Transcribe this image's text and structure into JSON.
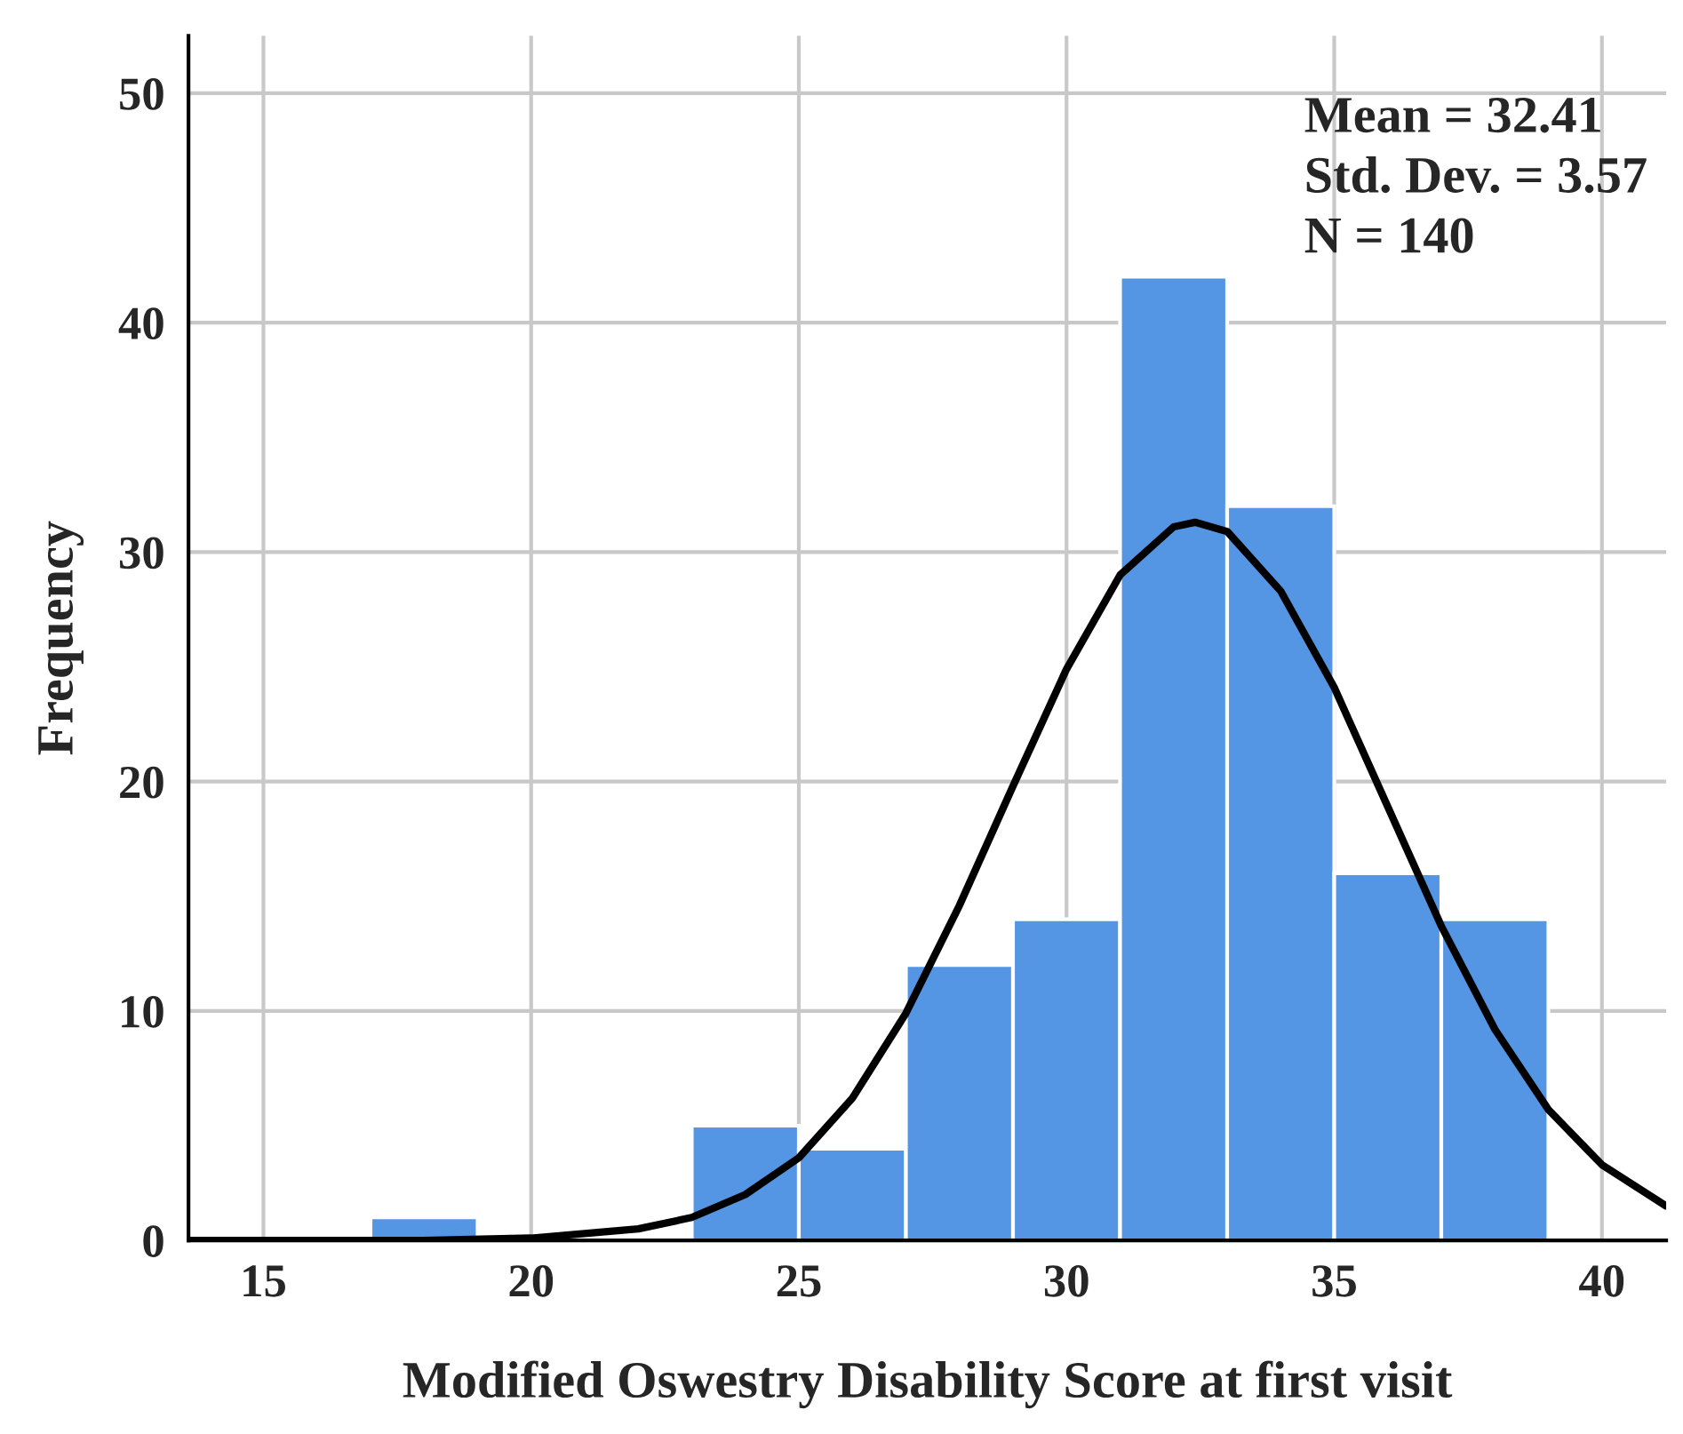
{
  "chart_data": {
    "type": "histogram",
    "xlabel": "Modified Oswestry Disability Score at first visit",
    "ylabel": "Frequency",
    "annotations": [
      "Mean = 32.41",
      "Std. Dev. = 3.57",
      "N = 140"
    ],
    "bins": [
      17,
      19,
      21,
      23,
      25,
      27,
      29,
      31,
      33,
      35,
      37,
      39
    ],
    "values": [
      1,
      0,
      0,
      5,
      4,
      12,
      14,
      42,
      32,
      16,
      14
    ],
    "color": "#5496e3",
    "series": [
      {
        "type": "line",
        "color": "#000000",
        "x": [
          13.6,
          16,
          18,
          20,
          22,
          23,
          24,
          25,
          26,
          27,
          28,
          29,
          30,
          31,
          32,
          32.4,
          33,
          34,
          35,
          36,
          37,
          38,
          39,
          40,
          41.2
        ],
        "values": [
          0,
          0,
          0,
          0.1,
          0.5,
          1.0,
          2.0,
          3.6,
          6.2,
          9.9,
          14.6,
          19.8,
          24.9,
          29.0,
          31.1,
          31.3,
          30.9,
          28.3,
          24.1,
          18.9,
          13.7,
          9.2,
          5.7,
          3.3,
          1.5
        ]
      }
    ],
    "xlim": [
      13.6,
      41.2
    ],
    "xticks": [
      15,
      20,
      25,
      30,
      35,
      40
    ],
    "ylim": [
      0,
      52.5
    ],
    "yticks": [
      0,
      10,
      20,
      30,
      40,
      50
    ],
    "grid": true
  }
}
